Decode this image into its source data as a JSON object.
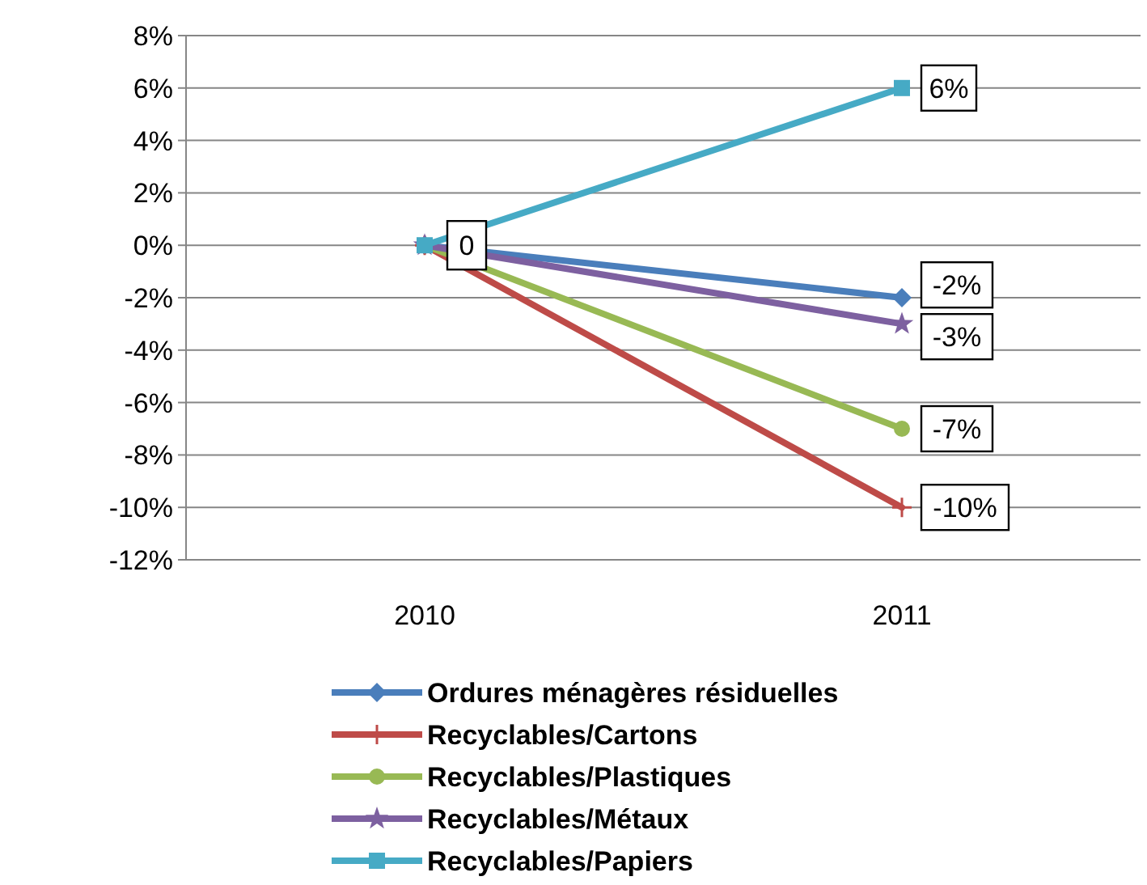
{
  "chart_data": {
    "type": "line",
    "categories": [
      "2010",
      "2011"
    ],
    "ylim": [
      -12,
      8
    ],
    "yticks": [
      {
        "value": -12,
        "label": "-12%"
      },
      {
        "value": -10,
        "label": "-10%"
      },
      {
        "value": -8,
        "label": "-8%"
      },
      {
        "value": -6,
        "label": "-6%"
      },
      {
        "value": -4,
        "label": "-4%"
      },
      {
        "value": -2,
        "label": "-2%"
      },
      {
        "value": 0,
        "label": "0%"
      },
      {
        "value": 2,
        "label": "2%"
      },
      {
        "value": 4,
        "label": "4%"
      },
      {
        "value": 6,
        "label": "6%"
      },
      {
        "value": 8,
        "label": "8%"
      }
    ],
    "grid": "y",
    "legend": "bottom",
    "series": [
      {
        "name": "Ordures ménagères résiduelles",
        "color": "#4a7ebb",
        "marker": "diamond",
        "values": [
          0,
          -2
        ],
        "value_labels": [
          null,
          "-2%"
        ]
      },
      {
        "name": "Recyclables/Cartons",
        "color": "#be4b48",
        "marker": "cross",
        "values": [
          0,
          -10
        ],
        "value_labels": [
          null,
          "-10%"
        ]
      },
      {
        "name": "Recyclables/Plastiques",
        "color": "#98b954",
        "marker": "circle",
        "values": [
          0,
          -7
        ],
        "value_labels": [
          null,
          "-7%"
        ]
      },
      {
        "name": "Recyclables/Métaux",
        "color": "#7d60a0",
        "marker": "star",
        "values": [
          0,
          -3
        ],
        "value_labels": [
          null,
          "-3%"
        ]
      },
      {
        "name": "Recyclables/Papiers",
        "color": "#46aac5",
        "marker": "square",
        "values": [
          0,
          6
        ],
        "value_labels": [
          "0",
          "6%"
        ]
      }
    ]
  }
}
